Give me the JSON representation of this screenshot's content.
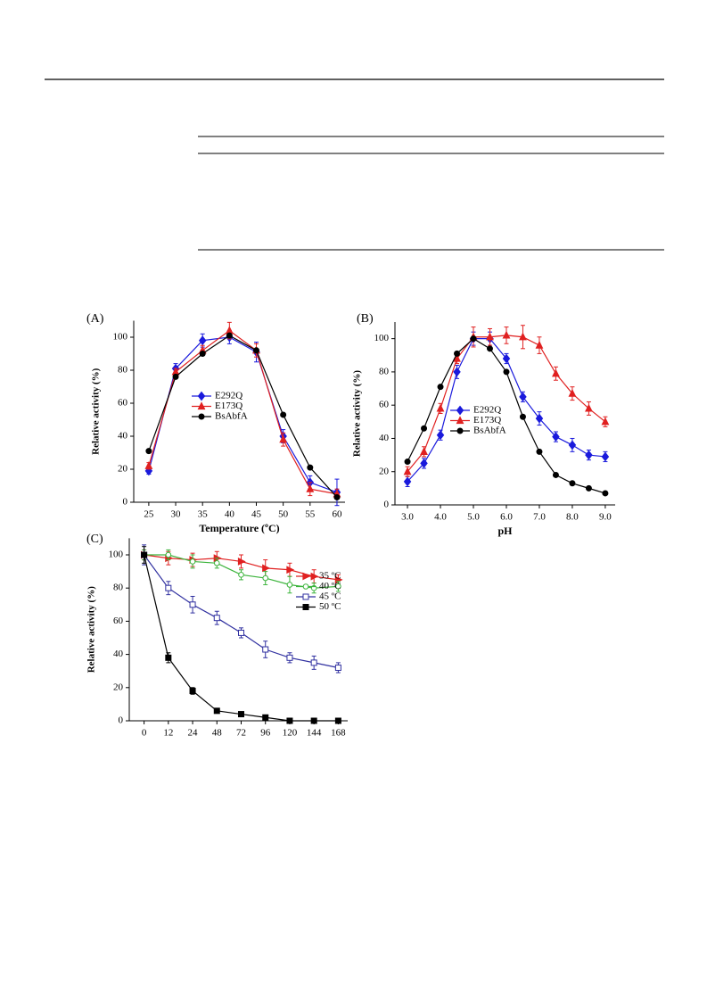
{
  "chart_data": [
    {
      "type": "line",
      "panel_label": "(A)",
      "xlabel": "Temperature (ºC)",
      "ylabel": "Relative activity (%)",
      "x": [
        25,
        30,
        35,
        40,
        45,
        50,
        55,
        60
      ],
      "xlim": [
        22.2,
        61.5
      ],
      "xticks": [
        25,
        30,
        35,
        40,
        45,
        50,
        55,
        60
      ],
      "ylim": [
        0,
        110
      ],
      "yticks": [
        0,
        20,
        40,
        60,
        80,
        100
      ],
      "series": [
        {
          "name": "E292Q",
          "color": "#1a1adc",
          "marker": "diamond",
          "values": [
            19,
            81,
            98,
            100,
            91,
            40,
            12,
            6
          ],
          "errors": [
            2,
            3,
            4,
            4,
            6,
            4,
            4,
            8
          ]
        },
        {
          "name": "E173Q",
          "color": "#e02020",
          "marker": "triangle",
          "values": [
            22,
            79,
            92,
            104,
            92,
            38,
            8,
            5
          ],
          "errors": [
            2,
            2,
            3,
            5,
            4,
            4,
            4,
            3
          ]
        },
        {
          "name": "BsAbfA",
          "color": "#000000",
          "marker": "circle",
          "values": [
            31,
            76,
            90,
            101,
            92,
            53,
            21,
            3
          ]
        }
      ]
    },
    {
      "type": "line",
      "panel_label": "(B)",
      "xlabel": "pH",
      "ylabel": "Relative activity (%)",
      "x": [
        3.0,
        3.5,
        4.0,
        4.5,
        5.0,
        5.5,
        6.0,
        6.5,
        7.0,
        7.5,
        8.0,
        8.5,
        9.0
      ],
      "xlim": [
        2.62,
        9.3
      ],
      "xticks": [
        {
          "value": 3,
          "label": "3.0"
        },
        {
          "value": 4,
          "label": "4.0"
        },
        {
          "value": 5,
          "label": "5.0"
        },
        {
          "value": 6,
          "label": "6.0"
        },
        {
          "value": 7,
          "label": "7.0"
        },
        {
          "value": 8,
          "label": "8.0"
        },
        {
          "value": 9,
          "label": "9.0"
        }
      ],
      "ylim": [
        0,
        110
      ],
      "yticks": [
        0,
        20,
        40,
        60,
        80,
        100
      ],
      "series": [
        {
          "name": "E292Q",
          "color": "#1a1adc",
          "marker": "diamond",
          "values": [
            14,
            25,
            42,
            80,
            100,
            100,
            88,
            65,
            52,
            41,
            36,
            30,
            29
          ],
          "errors": [
            3,
            3,
            3,
            4,
            4,
            4,
            3,
            3,
            4,
            3,
            4,
            3,
            3
          ]
        },
        {
          "name": "E173Q",
          "color": "#e02020",
          "marker": "triangle",
          "values": [
            20,
            32,
            58,
            88,
            101,
            101,
            102,
            101,
            96,
            79,
            67,
            58,
            50
          ],
          "errors": [
            3,
            3,
            3,
            3,
            6,
            5,
            5,
            7,
            5,
            4,
            4,
            4,
            3
          ]
        },
        {
          "name": "BsAbfA",
          "color": "#000000",
          "marker": "circle",
          "values": [
            26,
            46,
            71,
            91,
            100,
            94,
            80,
            53,
            32,
            18,
            13,
            10,
            7
          ]
        }
      ]
    },
    {
      "type": "line",
      "panel_label": "(C)",
      "ylabel": "Relative activity (%)",
      "categories": [
        "0",
        "12",
        "24",
        "48",
        "72",
        "96",
        "120",
        "144",
        "168"
      ],
      "ylim": [
        0,
        110
      ],
      "yticks": [
        0,
        20,
        40,
        60,
        80,
        100
      ],
      "series": [
        {
          "name": "35 ºC",
          "color": "#e02020",
          "marker": "triangle-right",
          "values": [
            100,
            98,
            97,
            98,
            96,
            92,
            91,
            87,
            85
          ],
          "errors": [
            3,
            4,
            4,
            4,
            4,
            5,
            4,
            4,
            3
          ]
        },
        {
          "name": "40 ºC",
          "color": "#3cb43c",
          "marker": "open-circle",
          "values": [
            100,
            100,
            96,
            95,
            88,
            86,
            82,
            80,
            81
          ],
          "errors": [
            3,
            3,
            4,
            3,
            3,
            4,
            5,
            3,
            3
          ]
        },
        {
          "name": "45 ºC",
          "color": "#3030a0",
          "marker": "open-square",
          "values": [
            100,
            80,
            70,
            62,
            53,
            43,
            38,
            35,
            32
          ],
          "errors": [
            6,
            4,
            5,
            4,
            3,
            5,
            3,
            4,
            3
          ]
        },
        {
          "name": "50 ºC",
          "color": "#000000",
          "marker": "square",
          "values": [
            100,
            38,
            18,
            6,
            4,
            2,
            0,
            0,
            0
          ],
          "errors": [
            5,
            3,
            2,
            1,
            1,
            1,
            0,
            0,
            0
          ]
        }
      ]
    }
  ]
}
